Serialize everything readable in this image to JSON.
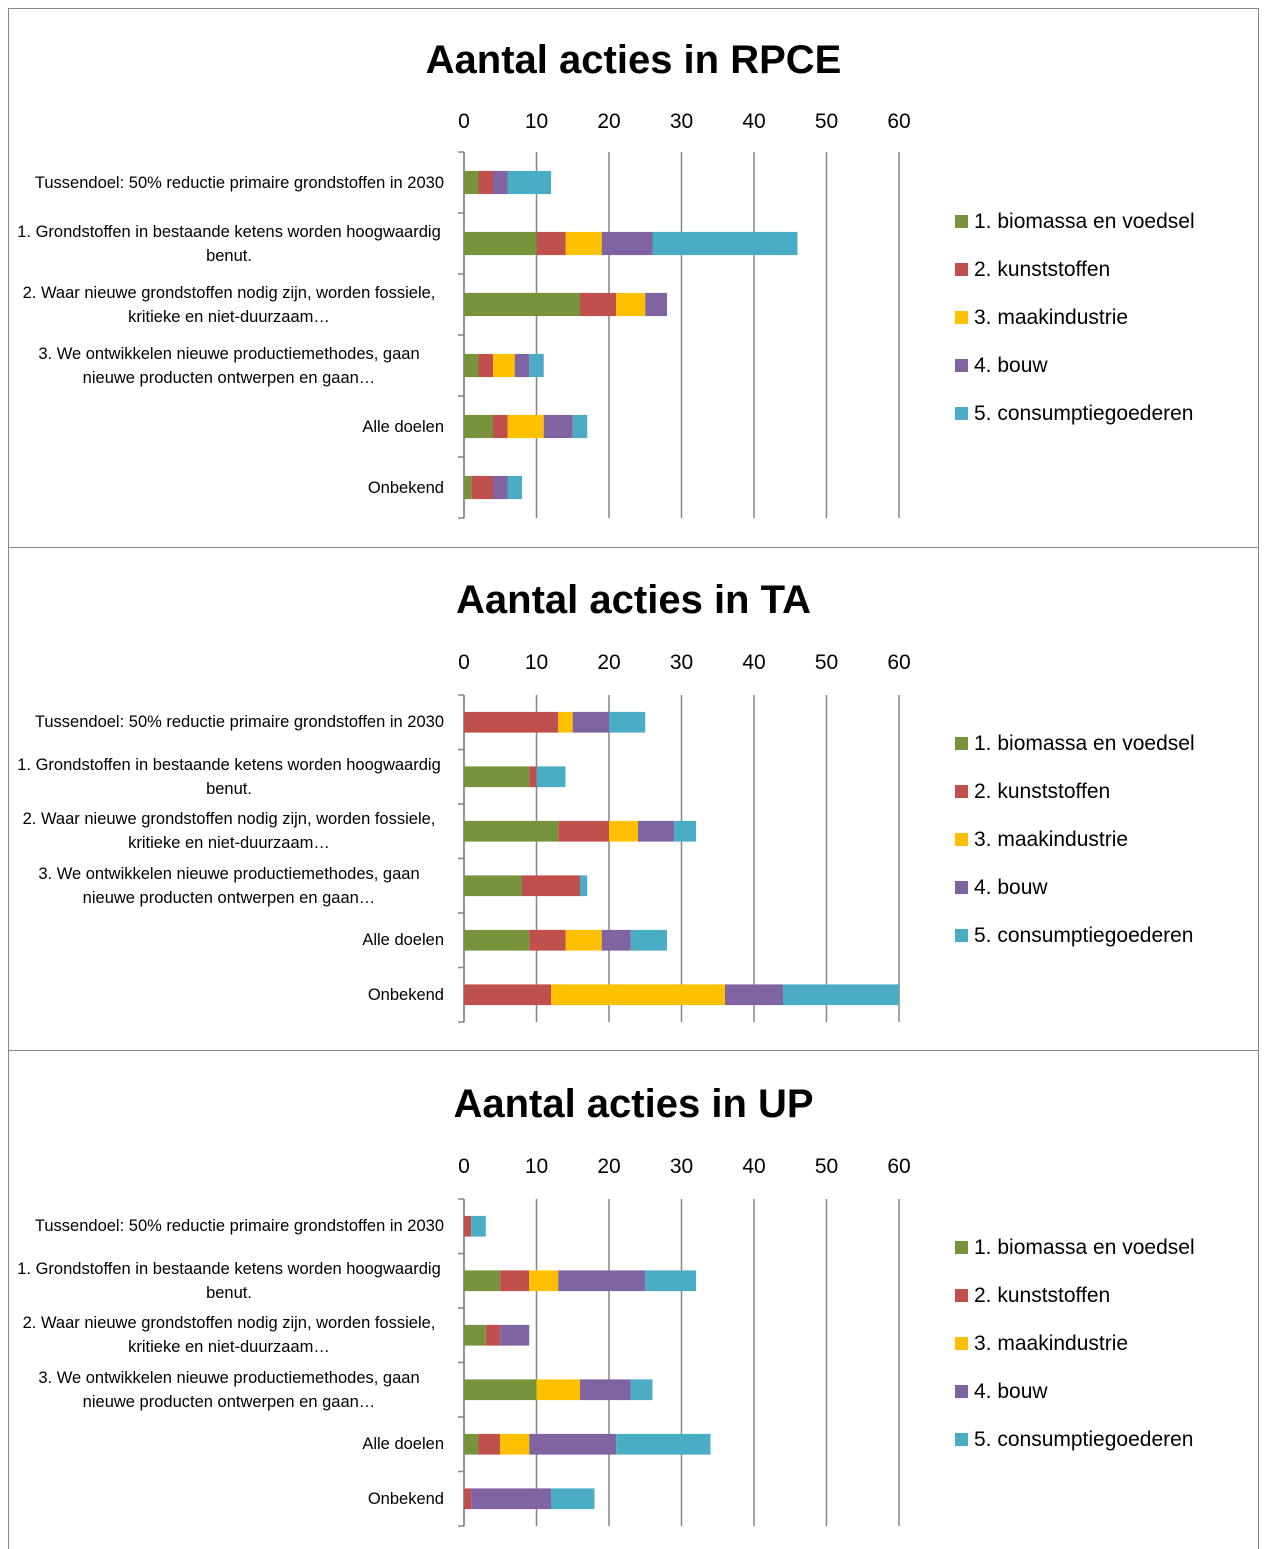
{
  "chart_data": [
    {
      "type": "bar",
      "orientation": "horizontal",
      "stacked": true,
      "title": "Aantal acties in RPCE",
      "categories": [
        "Tussendoel: 50% reductie primaire grondstoffen in 2030",
        "1. Grondstoffen in bestaande ketens worden hoogwaardig benut.",
        "2. Waar nieuwe grondstoffen nodig zijn, worden fossiele, kritieke en niet-duurzaam…",
        "3. We ontwikkelen nieuwe productiemethodes, gaan nieuwe producten ontwerpen en gaan…",
        "Alle doelen",
        "Onbekend"
      ],
      "series": [
        {
          "name": "1. biomassa en voedsel",
          "color": "#77933c",
          "values": [
            2,
            10,
            16,
            2,
            4,
            1
          ]
        },
        {
          "name": "2. kunststoffen",
          "color": "#c0504d",
          "values": [
            2,
            4,
            5,
            2,
            2,
            3
          ]
        },
        {
          "name": "3. maakindustrie",
          "color": "#ffc000",
          "values": [
            0,
            5,
            4,
            3,
            5,
            0
          ]
        },
        {
          "name": "4. bouw",
          "color": "#8064a2",
          "values": [
            2,
            7,
            3,
            2,
            4,
            2
          ]
        },
        {
          "name": "5. consumptiegoederen",
          "color": "#4bacc6",
          "values": [
            6,
            20,
            0,
            2,
            2,
            2
          ]
        }
      ],
      "xlim": [
        0,
        60
      ],
      "xticks": [
        0,
        10,
        20,
        30,
        40,
        50,
        60
      ],
      "grid": true,
      "legend": "right"
    },
    {
      "type": "bar",
      "orientation": "horizontal",
      "stacked": true,
      "title": "Aantal acties in TA",
      "categories": [
        "Tussendoel: 50% reductie primaire grondstoffen in 2030",
        "1. Grondstoffen in bestaande ketens worden hoogwaardig benut.",
        "2. Waar nieuwe grondstoffen nodig zijn, worden fossiele, kritieke en niet-duurzaam…",
        "3. We ontwikkelen nieuwe productiemethodes, gaan nieuwe producten ontwerpen en gaan…",
        "Alle doelen",
        "Onbekend"
      ],
      "series": [
        {
          "name": "1. biomassa en voedsel",
          "color": "#77933c",
          "values": [
            0,
            9,
            13,
            8,
            9,
            0
          ]
        },
        {
          "name": "2. kunststoffen",
          "color": "#c0504d",
          "values": [
            13,
            1,
            7,
            8,
            5,
            12
          ]
        },
        {
          "name": "3. maakindustrie",
          "color": "#ffc000",
          "values": [
            2,
            0,
            4,
            0,
            5,
            24
          ]
        },
        {
          "name": "4. bouw",
          "color": "#8064a2",
          "values": [
            5,
            0,
            5,
            0,
            4,
            8
          ]
        },
        {
          "name": "5. consumptiegoederen",
          "color": "#4bacc6",
          "values": [
            5,
            4,
            3,
            1,
            5,
            16
          ]
        }
      ],
      "xlim": [
        0,
        60
      ],
      "xticks": [
        0,
        10,
        20,
        30,
        40,
        50,
        60
      ],
      "grid": true,
      "legend": "right"
    },
    {
      "type": "bar",
      "orientation": "horizontal",
      "stacked": true,
      "title": "Aantal acties in UP",
      "categories": [
        "Tussendoel: 50% reductie primaire grondstoffen in 2030",
        "1. Grondstoffen in bestaande ketens worden hoogwaardig benut.",
        "2. Waar nieuwe grondstoffen nodig zijn, worden fossiele, kritieke en niet-duurzaam…",
        "3. We ontwikkelen nieuwe productiemethodes, gaan nieuwe producten ontwerpen en gaan…",
        "Alle doelen",
        "Onbekend"
      ],
      "series": [
        {
          "name": "1. biomassa en voedsel",
          "color": "#77933c",
          "values": [
            0,
            5,
            3,
            10,
            2,
            0
          ]
        },
        {
          "name": "2. kunststoffen",
          "color": "#c0504d",
          "values": [
            1,
            4,
            2,
            0,
            3,
            1
          ]
        },
        {
          "name": "3. maakindustrie",
          "color": "#ffc000",
          "values": [
            0,
            4,
            0,
            6,
            4,
            0
          ]
        },
        {
          "name": "4. bouw",
          "color": "#8064a2",
          "values": [
            0,
            12,
            4,
            7,
            12,
            11
          ]
        },
        {
          "name": "5. consumptiegoederen",
          "color": "#4bacc6",
          "values": [
            2,
            7,
            0,
            3,
            13,
            6
          ]
        }
      ],
      "xlim": [
        0,
        60
      ],
      "xticks": [
        0,
        10,
        20,
        30,
        40,
        50,
        60
      ],
      "grid": true,
      "legend": "right"
    }
  ]
}
